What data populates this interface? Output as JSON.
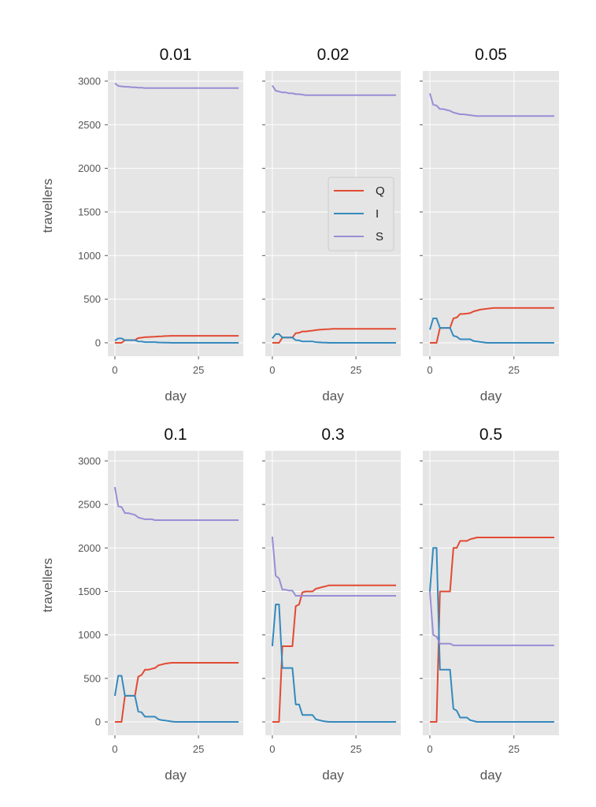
{
  "chart_data": [
    {
      "type": "line",
      "title": "0.01",
      "xlabel": "day",
      "ylabel": "travellers",
      "xlim": [
        -2.1,
        38.4
      ],
      "ylim": [
        -154,
        3117
      ],
      "xticks": [
        "0",
        "25"
      ],
      "yticks": [
        "0",
        "500",
        "1000",
        "1500",
        "2000",
        "2500",
        "3000"
      ],
      "grid": true,
      "series": [
        {
          "name": "Q",
          "values": [
            0,
            0,
            0,
            30,
            30,
            30,
            30,
            55,
            58,
            65,
            65,
            68,
            70,
            73,
            75,
            77,
            78,
            80
          ]
        },
        {
          "name": "I",
          "values": [
            25,
            50,
            50,
            30,
            30,
            30,
            30,
            15,
            14,
            8,
            8,
            8,
            8,
            4,
            3,
            2,
            1,
            0
          ]
        },
        {
          "name": "S",
          "values": [
            2975,
            2945,
            2940,
            2935,
            2935,
            2930,
            2930,
            2925,
            2925,
            2920
          ]
        }
      ]
    },
    {
      "type": "line",
      "title": "0.02",
      "xlabel": "day",
      "ylabel": "",
      "xlim": [
        -2.1,
        38.4
      ],
      "ylim": [
        -154,
        3117
      ],
      "xticks": [
        "0",
        "25"
      ],
      "yticks": [],
      "grid": true,
      "legend": "center-right",
      "series": [
        {
          "name": "Q",
          "values": [
            0,
            0,
            0,
            60,
            60,
            60,
            60,
            110,
            115,
            130,
            130,
            135,
            140,
            145,
            150,
            152,
            155,
            157,
            160
          ]
        },
        {
          "name": "I",
          "values": [
            50,
            100,
            100,
            60,
            60,
            60,
            60,
            30,
            28,
            15,
            15,
            15,
            15,
            8,
            5,
            3,
            2,
            0
          ]
        },
        {
          "name": "S",
          "values": [
            2950,
            2890,
            2880,
            2870,
            2870,
            2860,
            2860,
            2850,
            2850,
            2845,
            2840
          ]
        }
      ]
    },
    {
      "type": "line",
      "title": "0.05",
      "xlabel": "day",
      "ylabel": "",
      "xlim": [
        -2.1,
        38.4
      ],
      "ylim": [
        -154,
        3117
      ],
      "xticks": [
        "0",
        "25"
      ],
      "yticks": [],
      "grid": true,
      "series": [
        {
          "name": "Q",
          "values": [
            0,
            0,
            0,
            170,
            170,
            170,
            170,
            280,
            290,
            330,
            330,
            335,
            340,
            360,
            370,
            380,
            385,
            390,
            395,
            400
          ]
        },
        {
          "name": "I",
          "values": [
            150,
            280,
            280,
            170,
            170,
            170,
            170,
            80,
            70,
            40,
            40,
            40,
            40,
            20,
            15,
            10,
            5,
            0
          ]
        },
        {
          "name": "S",
          "values": [
            2860,
            2730,
            2720,
            2680,
            2680,
            2670,
            2660,
            2640,
            2630,
            2620,
            2620,
            2615,
            2610,
            2605,
            2600
          ]
        }
      ]
    },
    {
      "type": "line",
      "title": "0.1",
      "xlabel": "day",
      "ylabel": "travellers",
      "xlim": [
        -2.1,
        38.4
      ],
      "ylim": [
        -154,
        3117
      ],
      "xticks": [
        "0",
        "25"
      ],
      "yticks": [
        "0",
        "500",
        "1000",
        "1500",
        "2000",
        "2500",
        "3000"
      ],
      "grid": true,
      "series": [
        {
          "name": "Q",
          "values": [
            0,
            0,
            0,
            300,
            300,
            300,
            300,
            520,
            540,
            600,
            600,
            610,
            620,
            650,
            660,
            670,
            675,
            680
          ]
        },
        {
          "name": "I",
          "values": [
            300,
            530,
            530,
            300,
            300,
            300,
            300,
            120,
            110,
            60,
            60,
            60,
            60,
            30,
            20,
            15,
            10,
            5,
            0
          ]
        },
        {
          "name": "S",
          "values": [
            2700,
            2480,
            2470,
            2400,
            2400,
            2390,
            2380,
            2350,
            2340,
            2330,
            2330,
            2330,
            2320
          ]
        }
      ]
    },
    {
      "type": "line",
      "title": "0.3",
      "xlabel": "day",
      "ylabel": "",
      "xlim": [
        -2.1,
        38.4
      ],
      "ylim": [
        -154,
        3117
      ],
      "xticks": [
        "0",
        "25"
      ],
      "yticks": [],
      "grid": true,
      "series": [
        {
          "name": "Q",
          "values": [
            0,
            0,
            0,
            870,
            870,
            870,
            870,
            1330,
            1350,
            1490,
            1500,
            1500,
            1500,
            1530,
            1540,
            1550,
            1560,
            1570
          ]
        },
        {
          "name": "I",
          "values": [
            870,
            1350,
            1350,
            620,
            620,
            620,
            620,
            200,
            200,
            80,
            80,
            80,
            80,
            30,
            20,
            10,
            5,
            0
          ]
        },
        {
          "name": "S",
          "values": [
            2130,
            1680,
            1650,
            1520,
            1520,
            1510,
            1510,
            1450
          ]
        }
      ]
    },
    {
      "type": "line",
      "title": "0.5",
      "xlabel": "day",
      "ylabel": "",
      "xlim": [
        -2.1,
        38.4
      ],
      "ylim": [
        -154,
        3117
      ],
      "xticks": [
        "0",
        "25"
      ],
      "yticks": [],
      "grid": true,
      "series": [
        {
          "name": "Q",
          "values": [
            0,
            0,
            0,
            1500,
            1500,
            1500,
            1500,
            2000,
            2000,
            2080,
            2080,
            2080,
            2100,
            2110,
            2120
          ]
        },
        {
          "name": "I",
          "values": [
            1500,
            2000,
            2000,
            600,
            600,
            600,
            600,
            150,
            130,
            50,
            50,
            50,
            20,
            10,
            0
          ]
        },
        {
          "name": "S",
          "values": [
            1500,
            1000,
            980,
            900,
            900,
            900,
            900,
            880
          ]
        }
      ]
    }
  ],
  "last_day": 37,
  "colors": {
    "Q": "#E24A33",
    "I": "#348ABD",
    "S": "#988ED5",
    "panel": "#E5E5E5",
    "grid": "#FFFFFF"
  },
  "legend": {
    "entries": [
      "Q",
      "I",
      "S"
    ]
  }
}
